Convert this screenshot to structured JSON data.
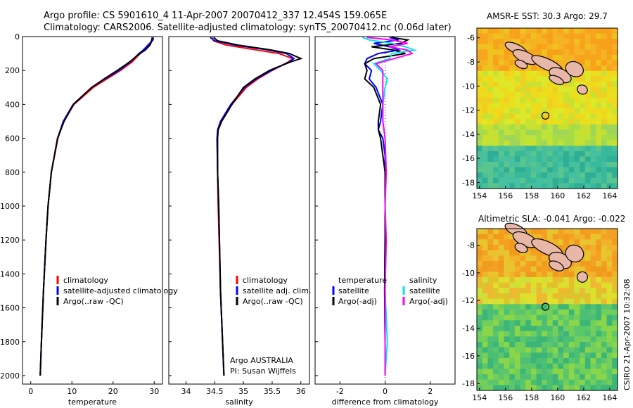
{
  "header": {
    "title_line1": "Argo profile: CS 5901610_4 11-Apr-2007 20070412_337 12.454S 159.065E",
    "title_line2": "Climatology: CARS2006. Satellite-adjusted climatology: synTS_20070412.nc (0.06d later)"
  },
  "colors": {
    "clim": "#ff0000",
    "sat": "#0000ff",
    "argo": "#000000",
    "sat_sal": "#00e5ee",
    "argo_sal": "#ff00ff"
  },
  "credit": {
    "lines": [
      "Argo AUSTRALIA",
      "PI: Susan Wijffels"
    ],
    "side": "CSIRO 21-Apr-2007 10:32:08"
  },
  "chart_data": [
    {
      "id": "temperature",
      "type": "line",
      "xlabel": "temperature",
      "xlim": [
        -2,
        32
      ],
      "ylim": [
        2050,
        0
      ],
      "xticks": [
        0,
        10,
        20,
        30
      ],
      "yticks": [
        0,
        200,
        400,
        600,
        800,
        1000,
        1200,
        1400,
        1600,
        1800,
        2000
      ],
      "legend": [
        "climatology",
        "satellite-adjusted climatology",
        "Argo(..raw -QC)"
      ],
      "legend_position": "lower-center",
      "series": [
        {
          "name": "climatology",
          "color_key": "clim",
          "depth": [
            5,
            20,
            50,
            80,
            100,
            150,
            200,
            250,
            300,
            400,
            500,
            600,
            800,
            1000,
            1200,
            1500,
            1800,
            2000
          ],
          "values": [
            29.6,
            29.6,
            28.9,
            27.5,
            26.6,
            24.6,
            21.8,
            18.5,
            15.2,
            10.5,
            8.0,
            6.6,
            5.0,
            4.2,
            3.7,
            3.1,
            2.6,
            2.3
          ]
        },
        {
          "name": "satellite",
          "color_key": "sat",
          "depth": [
            5,
            20,
            50,
            80,
            100,
            150,
            200,
            250,
            300,
            400,
            500,
            600,
            800,
            1000,
            1200,
            1500,
            1800,
            2000
          ],
          "values": [
            29.8,
            29.7,
            28.5,
            27.3,
            26.3,
            24.2,
            21.4,
            18.0,
            14.8,
            10.3,
            7.9,
            6.5,
            5.0,
            4.2,
            3.7,
            3.1,
            2.6,
            2.3
          ]
        },
        {
          "name": "argo",
          "color_key": "argo",
          "depth": [
            5,
            20,
            50,
            80,
            100,
            150,
            200,
            250,
            300,
            400,
            500,
            600,
            800,
            1000,
            1200,
            1500,
            1800,
            2000
          ],
          "values": [
            29.5,
            29.4,
            29.0,
            27.8,
            26.5,
            24.0,
            21.0,
            17.8,
            14.8,
            10.4,
            8.1,
            6.5,
            5.0,
            4.2,
            3.7,
            3.1,
            2.6,
            2.3
          ]
        }
      ]
    },
    {
      "id": "salinity",
      "type": "line",
      "xlabel": "salinity",
      "xlim": [
        33.7,
        36.15
      ],
      "ylim": [
        2050,
        0
      ],
      "xticks": [
        34,
        34.5,
        35,
        35.5,
        36
      ],
      "legend": [
        "climatology",
        "satellite adj. clim.",
        "Argo(..raw -QC)"
      ],
      "legend_position": "lower-center",
      "series": [
        {
          "name": "climatology",
          "color_key": "clim",
          "depth": [
            5,
            25,
            50,
            80,
            100,
            130,
            150,
            200,
            250,
            300,
            400,
            500,
            550,
            600,
            800,
            1000,
            1500,
            2000
          ],
          "values": [
            34.45,
            34.48,
            34.7,
            35.25,
            35.62,
            35.86,
            35.78,
            35.5,
            35.25,
            35.05,
            34.8,
            34.62,
            34.56,
            34.54,
            34.55,
            34.56,
            34.6,
            34.66
          ]
        },
        {
          "name": "satellite",
          "color_key": "sat",
          "depth": [
            5,
            25,
            50,
            80,
            100,
            130,
            150,
            200,
            250,
            300,
            400,
            500,
            550,
            600,
            800,
            1000,
            1500,
            2000
          ],
          "values": [
            34.42,
            34.5,
            34.85,
            35.45,
            35.75,
            35.88,
            35.8,
            35.48,
            35.22,
            35.02,
            34.78,
            34.6,
            34.55,
            34.54,
            34.55,
            34.57,
            34.6,
            34.66
          ]
        },
        {
          "name": "argo",
          "color_key": "argo",
          "depth": [
            5,
            25,
            50,
            80,
            100,
            130,
            150,
            200,
            250,
            300,
            400,
            500,
            550,
            600,
            800,
            1000,
            1500,
            2000
          ],
          "values": [
            34.48,
            34.55,
            34.9,
            35.5,
            35.8,
            36.0,
            35.82,
            35.45,
            35.2,
            35.0,
            34.8,
            34.62,
            34.56,
            34.55,
            34.55,
            34.57,
            34.6,
            34.66
          ]
        }
      ]
    },
    {
      "id": "difference",
      "type": "line",
      "xlabel": "difference from climatology",
      "xlim": [
        -3.1,
        3.1
      ],
      "ylim": [
        2050,
        0
      ],
      "xticks": [
        -2,
        0,
        2
      ],
      "legend": [
        "temperature",
        "satellite",
        "Argo(-adj)",
        "salinity",
        "satellite",
        "Argo(-adj)"
      ],
      "legend_position": "lower-center",
      "series": [
        {
          "name": "temperature satellite",
          "color_key": "sat",
          "depth": [
            5,
            20,
            40,
            60,
            80,
            100,
            130,
            160,
            200,
            250,
            300,
            400,
            500,
            550,
            600,
            700,
            800,
            1000,
            1200,
            1500,
            1800,
            2000
          ],
          "values": [
            0.2,
            0.6,
            -0.5,
            0.2,
            0.6,
            -0.3,
            -0.8,
            -0.9,
            -0.6,
            -0.7,
            -0.4,
            -0.1,
            -0.2,
            -0.3,
            -0.1,
            0.0,
            0.0,
            0.0,
            0.0,
            -0.02,
            0.0,
            0.0
          ]
        },
        {
          "name": "temperature argo",
          "color_key": "argo",
          "depth": [
            5,
            20,
            40,
            60,
            80,
            100,
            130,
            160,
            200,
            250,
            300,
            400,
            500,
            550,
            600,
            700,
            800,
            1000,
            1200,
            1500,
            1800,
            2000
          ],
          "values": [
            0.3,
            1.0,
            0.7,
            -0.6,
            0.4,
            0.9,
            -0.5,
            -0.9,
            -0.8,
            -0.9,
            -0.5,
            -0.2,
            -0.3,
            -0.3,
            -0.2,
            -0.1,
            0.0,
            0.0,
            0.0,
            -0.02,
            0.0,
            0.0
          ]
        },
        {
          "name": "salinity satellite",
          "color_key": "sat_sal",
          "depth": [
            5,
            20,
            40,
            60,
            80,
            100,
            130,
            160,
            200,
            250,
            300,
            400,
            500,
            600,
            800,
            1000,
            1200,
            1500,
            1800,
            2000
          ],
          "values": [
            -1.0,
            -0.7,
            0.3,
            0.9,
            1.3,
            0.3,
            0.2,
            -0.5,
            -0.2,
            0.1,
            0.0,
            -0.1,
            -0.1,
            0.0,
            0.05,
            0.0,
            0.05,
            0.0,
            0.1,
            0.0
          ]
        },
        {
          "name": "salinity argo",
          "color_key": "argo_sal",
          "depth": [
            5,
            20,
            40,
            60,
            80,
            100,
            130,
            160,
            200,
            250,
            300,
            400,
            500,
            600,
            800,
            1000,
            1200,
            1500,
            1800,
            2000
          ],
          "values": [
            -0.8,
            0.3,
            1.0,
            0.2,
            1.0,
            1.2,
            0.4,
            -0.4,
            -0.1,
            -0.1,
            -0.1,
            -0.1,
            -0.1,
            0.0,
            0.05,
            0.0,
            0.05,
            0.0,
            0.0,
            0.0
          ]
        }
      ]
    },
    {
      "id": "sst_map",
      "type": "heatmap",
      "title": "AMSR-E SST: 30.3  Argo: 29.7",
      "xlim": [
        153.8,
        164.6
      ],
      "ylim": [
        -18.5,
        -5.2
      ],
      "xticks": [
        154,
        156,
        158,
        160,
        162,
        164
      ],
      "yticks": [
        -6,
        -8,
        -10,
        -12,
        -14,
        -16,
        -18
      ],
      "marker": {
        "lon": 159.065,
        "lat": -12.454
      }
    },
    {
      "id": "sla_map",
      "type": "heatmap",
      "title": "Altimetric SLA: -0.041  Argo: -0.022",
      "xlim": [
        153.8,
        164.6
      ],
      "ylim": [
        -18.5,
        -6.8
      ],
      "xticks": [
        154,
        156,
        158,
        160,
        162,
        164
      ],
      "yticks": [
        -8,
        -10,
        -12,
        -14,
        -16,
        -18
      ],
      "marker": {
        "lon": 159.065,
        "lat": -12.454
      }
    }
  ]
}
